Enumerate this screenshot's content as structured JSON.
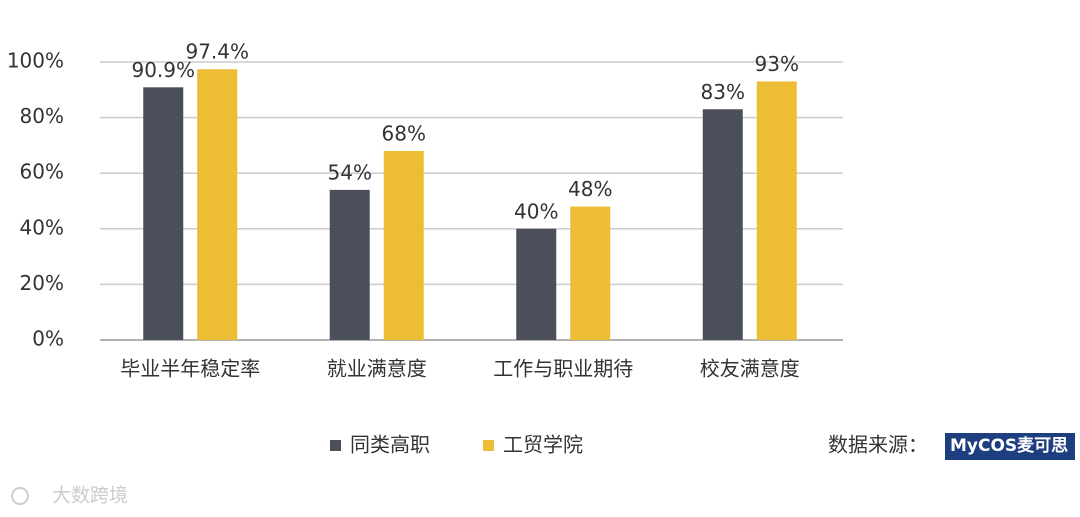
{
  "chart_data": {
    "type": "bar",
    "categories": [
      "毕业半年稳定率",
      "就业满意度",
      "工作与职业期待",
      "校友满意度"
    ],
    "series": [
      {
        "name": "同类高职",
        "color": "#4b4f5c",
        "values": [
          90.9,
          54,
          40,
          83
        ],
        "value_labels": [
          "90.9%",
          "54%",
          "40%",
          "83%"
        ]
      },
      {
        "name": "工贸学院",
        "color": "#ecbd35",
        "values": [
          97.4,
          68,
          48,
          93
        ],
        "value_labels": [
          "97.4%",
          "68%",
          "48%",
          "93%"
        ]
      }
    ],
    "ylim": [
      0,
      100
    ],
    "yticks": [
      {
        "value": 0,
        "label": "0%"
      },
      {
        "value": 20,
        "label": "20%"
      },
      {
        "value": 40,
        "label": "40%"
      },
      {
        "value": 60,
        "label": "60%"
      },
      {
        "value": 80,
        "label": "80%"
      },
      {
        "value": 100,
        "label": "100%"
      }
    ],
    "grid": true,
    "legend": "bottom",
    "source_label": "数据来源：",
    "source_logo": "MyCOS麦可思",
    "watermark": "大数跨境"
  }
}
